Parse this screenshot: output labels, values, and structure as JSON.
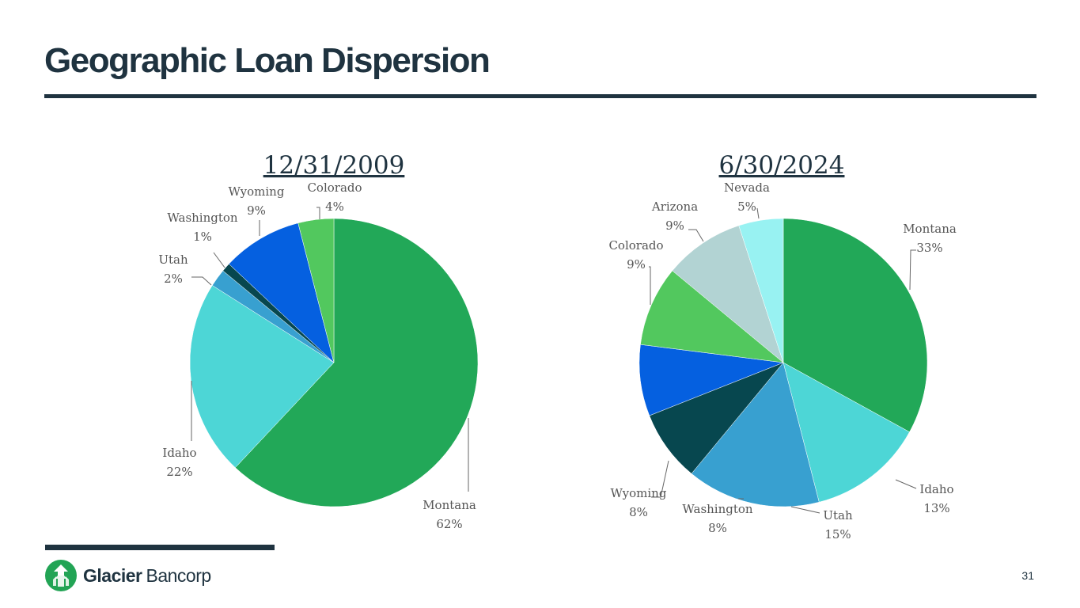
{
  "slide": {
    "title": "Geographic Loan Dispersion",
    "page_number": "31"
  },
  "logo": {
    "name_bold": "Glacier",
    "name_light": "Bancorp",
    "icon": "glacier-arrows-icon",
    "color": "#22a455"
  },
  "chart_data": [
    {
      "type": "pie",
      "title": "12/31/2009",
      "slices": [
        {
          "label": "Montana",
          "value": 62,
          "display": "62%",
          "color": "#22a858"
        },
        {
          "label": "Idaho",
          "value": 22,
          "display": "22%",
          "color": "#4dd6d6"
        },
        {
          "label": "Utah",
          "value": 2,
          "display": "2%",
          "color": "#38a0d0"
        },
        {
          "label": "Washington",
          "value": 1,
          "display": "1%",
          "color": "#07474f"
        },
        {
          "label": "Wyoming",
          "value": 9,
          "display": "9%",
          "color": "#0560e0"
        },
        {
          "label": "Colorado",
          "value": 4,
          "display": "4%",
          "color": "#52c85e"
        }
      ]
    },
    {
      "type": "pie",
      "title": "6/30/2024",
      "slices": [
        {
          "label": "Montana",
          "value": 33,
          "display": "33%",
          "color": "#22a858"
        },
        {
          "label": "Idaho",
          "value": 13,
          "display": "13%",
          "color": "#4dd6d6"
        },
        {
          "label": "Utah",
          "value": 15,
          "display": "15%",
          "color": "#38a0d0"
        },
        {
          "label": "Washington",
          "value": 8,
          "display": "8%",
          "color": "#07474f"
        },
        {
          "label": "Wyoming",
          "value": 8,
          "display": "8%",
          "color": "#0560e0"
        },
        {
          "label": "Colorado",
          "value": 9,
          "display": "9%",
          "color": "#52c85e"
        },
        {
          "label": "Arizona",
          "value": 9,
          "display": "9%",
          "color": "#b2d3d3"
        },
        {
          "label": "Nevada",
          "value": 5,
          "display": "5%",
          "color": "#98f2f2"
        }
      ]
    }
  ]
}
